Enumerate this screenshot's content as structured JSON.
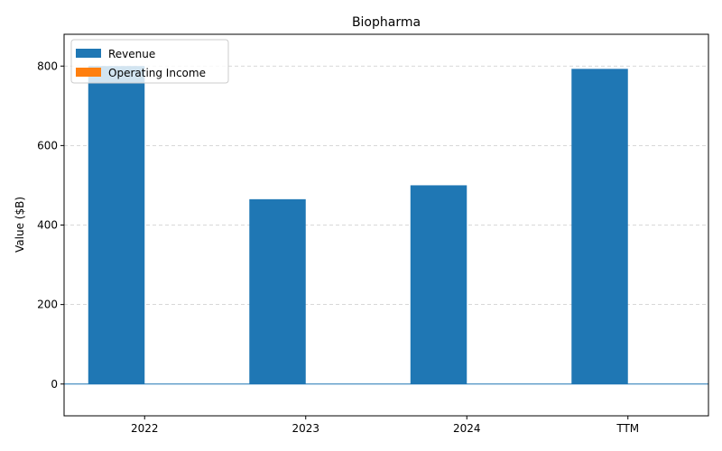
{
  "chart_data": {
    "type": "bar",
    "title": "Biopharma",
    "xlabel": "",
    "ylabel": "Value ($B)",
    "categories": [
      "2022",
      "2023",
      "2024",
      "TTM"
    ],
    "series": [
      {
        "name": "Revenue",
        "values": [
          800,
          465,
          500,
          793
        ],
        "color": "#1f77b4"
      },
      {
        "name": "Operating Income",
        "values": [
          0,
          0,
          0,
          0
        ],
        "color": "#ff7f0e"
      }
    ],
    "ylim": [
      -80,
      880
    ],
    "yticks": [
      0,
      200,
      400,
      600,
      800
    ],
    "grid": true,
    "legend_position": "top-left"
  }
}
